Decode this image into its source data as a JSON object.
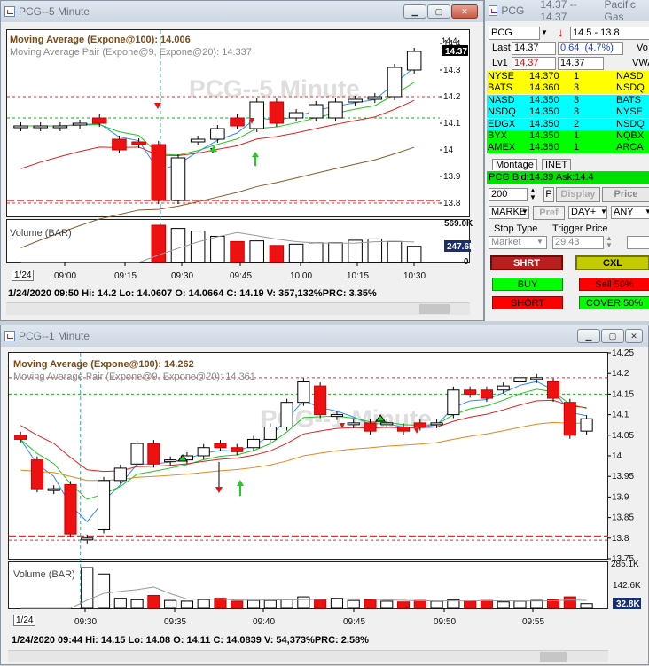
{
  "top_window": {
    "title": "PCG--5 Minute",
    "watermark": "PCG--5 Minute",
    "ma100_label": "Moving Average (Expone@100): 14.006",
    "ma_pair_label": "Moving Average Pair (Expone@9, Expone@20): 14.337",
    "price_axis": [
      "14.4",
      "14.3",
      "14.2",
      "14.1",
      "14",
      "13.9",
      "13.8"
    ],
    "last_price_badge": "14.37",
    "volume_label": "Volume (BAR)",
    "volume_max": "569.0K",
    "volume_last_badge": "247.6K",
    "volume_zero": "0",
    "date_tab": "1/24",
    "time_axis": [
      "09:00",
      "09:15",
      "09:30",
      "09:45",
      "10:00",
      "10:15",
      "10:30"
    ],
    "status": "1/24/2020 09:50  Hi: 14.2  Lo: 14.0607  O: 14.0664  C: 14.19  V: 357,132%PRC: 3.35%"
  },
  "montage": {
    "title": "PCG",
    "title_price": "14.37 -- 14.37",
    "title_name": "Pacific Gas",
    "symbol": "PCG",
    "range": "14.5 - 13.8",
    "last_label": "Last",
    "last_value": "14.37",
    "change": "0.64",
    "change_pct": "(4.7%)",
    "vol_label": "Vo",
    "lv1_label": "Lv1",
    "bid": "14.37",
    "ask": "14.37",
    "vwap_label": "VWA",
    "bids": [
      {
        "mm": "NYSE",
        "price": "14.370",
        "size": "1"
      },
      {
        "mm": "BATS",
        "price": "14.360",
        "size": "3"
      },
      {
        "mm": "NASD",
        "price": "14.350",
        "size": "3"
      },
      {
        "mm": "NSDQ",
        "price": "14.350",
        "size": "3"
      },
      {
        "mm": "EDGX",
        "price": "14.350",
        "size": "2"
      },
      {
        "mm": "BYX",
        "price": "14.350",
        "size": "1"
      },
      {
        "mm": "AMEX",
        "price": "14.350",
        "size": "1"
      }
    ],
    "asks": [
      "NASD",
      "NSDQ",
      "BATS",
      "NYSE",
      "NSDQ",
      "NQBX",
      "ARCA"
    ],
    "tab_montage": "Montage",
    "tab_inet": "INET",
    "bid_ask_line": "PCG Bid:14.39 Ask:14.4",
    "qty": "200",
    "p_label": "P",
    "display_label": "Display",
    "price_label": "Price",
    "order_type": "MARKE",
    "pref_label": "Pref",
    "tif": "DAY+",
    "route": "ANY",
    "stop_type_label": "Stop Type",
    "trigger_price_label": "Trigger Price",
    "stop_type_value": "Market",
    "trigger_value": "29.43",
    "shrt_label": "SHRT",
    "cxl_label": "CXL",
    "buy_label": "BUY",
    "sell50_label": "Sell 50%",
    "short_label": "SHORT",
    "cover50_label": "COVER 50%",
    "colors": {
      "bid_yellow": "#ffff00",
      "mid_cyan": "#00ffff",
      "ask_green": "#00ff00",
      "red_btn": "#ff0000",
      "green_btn": "#00ff00",
      "shrt_bg": "#cc2020",
      "cxl_bg": "#c8d400"
    }
  },
  "bottom_window": {
    "title": "PCG--1 Minute",
    "watermark": "PCG--1 Minute",
    "ma100_label": "Moving Average (Expone@100): 14.262",
    "ma_pair_label": "Moving Average Pair (Expone@9, Expone@20): 14.361",
    "price_axis": [
      "14.25",
      "14.2",
      "14.15",
      "14.1",
      "14.05",
      "14",
      "13.95",
      "13.9",
      "13.85",
      "13.8",
      "13.75"
    ],
    "volume_label": "Volume (BAR)",
    "volume_max": "285.1K",
    "volume_mid": "142.6K",
    "volume_last_badge": "32.8K",
    "date_tab": "1/24",
    "time_axis": [
      "09:30",
      "09:35",
      "09:40",
      "09:45",
      "09:50",
      "09:55"
    ],
    "status": "1/24/2020 09:44  Hi: 14.15  Lo: 14.08  O: 14.11  C: 14.0839  V: 54,373%PRC: 2.58%"
  },
  "chart_data": [
    {
      "type": "candlestick",
      "title": "PCG--5 Minute",
      "ylim": [
        13.75,
        14.45
      ],
      "candles": [
        {
          "o": 14.09,
          "c": 14.09
        },
        {
          "o": 14.09,
          "c": 14.09
        },
        {
          "o": 14.09,
          "c": 14.09
        },
        {
          "o": 14.1,
          "c": 14.1
        },
        {
          "o": 14.12,
          "c": 14.1
        },
        {
          "o": 14.04,
          "c": 14.0
        },
        {
          "o": 14.03,
          "c": 14.02
        },
        {
          "o": 14.02,
          "c": 13.81
        },
        {
          "o": 13.81,
          "c": 13.97
        },
        {
          "o": 14.03,
          "c": 14.04
        },
        {
          "o": 14.04,
          "c": 14.08
        },
        {
          "o": 14.12,
          "c": 14.09
        },
        {
          "o": 14.08,
          "c": 14.18
        },
        {
          "o": 14.18,
          "c": 14.1
        },
        {
          "o": 14.12,
          "c": 14.14
        },
        {
          "o": 14.12,
          "c": 14.17
        },
        {
          "o": 14.12,
          "c": 14.18
        },
        {
          "o": 14.18,
          "c": 14.19
        },
        {
          "o": 14.19,
          "c": 14.2
        },
        {
          "o": 14.2,
          "c": 14.31
        },
        {
          "o": 14.3,
          "c": 14.37
        }
      ],
      "volumes": [
        0,
        0,
        0,
        0,
        0,
        0,
        0,
        569,
        520,
        480,
        400,
        320,
        330,
        260,
        280,
        300,
        300,
        340,
        360,
        320,
        247.6
      ]
    },
    {
      "type": "candlestick",
      "title": "PCG--1 Minute",
      "ylim": [
        13.75,
        14.25
      ],
      "candles": [
        {
          "o": 14.05,
          "c": 14.04
        },
        {
          "o": 13.99,
          "c": 13.92
        },
        {
          "o": 13.92,
          "c": 13.92
        },
        {
          "o": 13.93,
          "c": 13.81
        },
        {
          "o": 13.8,
          "c": 13.8
        },
        {
          "o": 13.82,
          "c": 13.94
        },
        {
          "o": 13.94,
          "c": 13.97
        },
        {
          "o": 13.98,
          "c": 14.03
        },
        {
          "o": 14.03,
          "c": 13.98
        },
        {
          "o": 13.99,
          "c": 13.99
        },
        {
          "o": 13.99,
          "c": 14.0
        },
        {
          "o": 14.0,
          "c": 14.02
        },
        {
          "o": 14.03,
          "c": 14.02
        },
        {
          "o": 14.02,
          "c": 14.01
        },
        {
          "o": 14.02,
          "c": 14.04
        },
        {
          "o": 14.04,
          "c": 14.07
        },
        {
          "o": 14.07,
          "c": 14.13
        },
        {
          "o": 14.13,
          "c": 14.18
        },
        {
          "o": 14.17,
          "c": 14.1
        },
        {
          "o": 14.1,
          "c": 14.1
        },
        {
          "o": 14.08,
          "c": 14.08
        },
        {
          "o": 14.08,
          "c": 14.06
        },
        {
          "o": 14.08,
          "c": 14.08
        },
        {
          "o": 14.07,
          "c": 14.06
        },
        {
          "o": 14.08,
          "c": 14.07
        },
        {
          "o": 14.08,
          "c": 14.08
        },
        {
          "o": 14.1,
          "c": 14.16
        },
        {
          "o": 14.16,
          "c": 14.15
        },
        {
          "o": 14.16,
          "c": 14.14
        },
        {
          "o": 14.16,
          "c": 14.17
        },
        {
          "o": 14.18,
          "c": 14.19
        },
        {
          "o": 14.19,
          "c": 14.19
        },
        {
          "o": 14.18,
          "c": 14.14
        },
        {
          "o": 14.13,
          "c": 14.05
        },
        {
          "o": 14.06,
          "c": 14.09
        }
      ],
      "volumes": [
        0,
        0,
        0,
        0,
        285,
        240,
        70,
        60,
        90,
        55,
        50,
        60,
        70,
        50,
        55,
        55,
        65,
        80,
        60,
        70,
        55,
        60,
        50,
        45,
        55,
        50,
        60,
        50,
        55,
        45,
        50,
        55,
        60,
        80,
        32.8
      ]
    }
  ]
}
